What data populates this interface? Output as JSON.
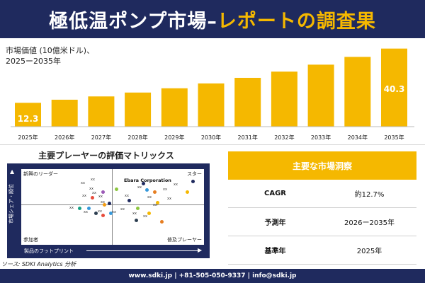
{
  "title": {
    "main": "極低温ポンプ市場",
    "dash": "–",
    "accent": "レポートの調査果"
  },
  "market_label": {
    "line1": "市場価値 (10億米ドル)、",
    "line2": "2025ー2035年"
  },
  "chart_data": {
    "type": "bar",
    "categories": [
      "2025年",
      "2026年",
      "2027年",
      "2028年",
      "2029年",
      "2030年",
      "2031年",
      "2032年",
      "2033年",
      "2034年",
      "2035年"
    ],
    "values": [
      12.3,
      13.9,
      15.6,
      17.6,
      19.8,
      22.3,
      25.2,
      28.4,
      32.0,
      36.0,
      40.3
    ],
    "data_labels": {
      "first": "12.3",
      "last": "40.3"
    },
    "bar_color": "#f5b800",
    "ylim": [
      0,
      42
    ]
  },
  "matrix": {
    "title": "主要プレーヤーの評価マトリックス",
    "corners": {
      "top_left": "新興のリーダー",
      "top_right": "スター",
      "bottom_left": "参加者",
      "bottom_right": "普及プレーヤー"
    },
    "y_axis": "市場シェア・順位",
    "x_axis": "製品のフットプリント",
    "highlight": "Ebara Corporation",
    "xx": "xx",
    "dot_colors": [
      "#1f2a5e",
      "#f5b800",
      "#8cc63f",
      "#9b59b6",
      "#e74c3c",
      "#3498db",
      "#f39c12",
      "#e67e22",
      "#2c3e50",
      "#16a085"
    ]
  },
  "source": "ソース: SDKI Analytics 分析",
  "insights": {
    "header": "主要な市場洞察",
    "rows": [
      {
        "key": "CAGR",
        "value": "約12.7%"
      },
      {
        "key": "予測年",
        "value": "2026ー2035年"
      },
      {
        "key": "基準年",
        "value": "2025年"
      }
    ]
  },
  "footer": "www.sdki.jp | +81-505-050-9337 | info@sdki.jp",
  "colors": {
    "navy": "#1f2a5e",
    "gold": "#f5b800"
  }
}
